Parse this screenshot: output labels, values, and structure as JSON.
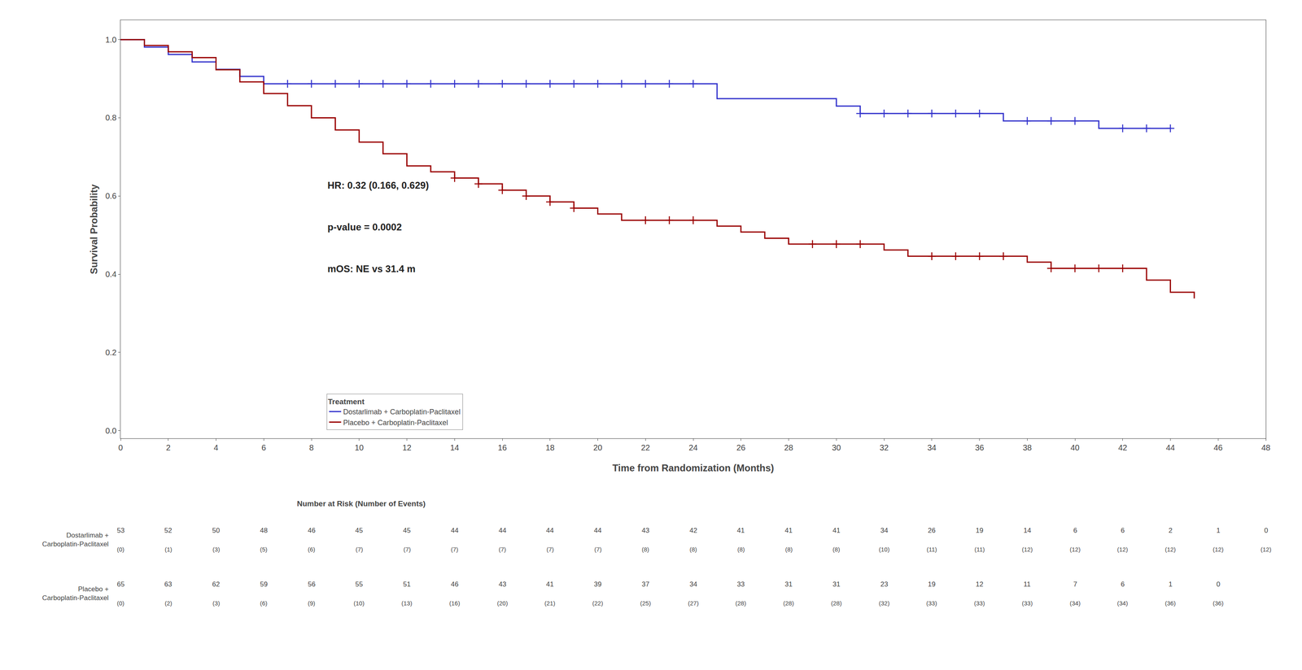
{
  "chart_data": {
    "type": "step",
    "x_label": "Time from Randomization (Months)",
    "y_label": "Survival Probability",
    "xlim": [
      0,
      48
    ],
    "xticks": [
      0,
      2,
      4,
      6,
      8,
      10,
      12,
      14,
      16,
      18,
      20,
      22,
      24,
      26,
      28,
      30,
      32,
      34,
      36,
      38,
      40,
      42,
      44,
      46,
      48
    ],
    "ylim": [
      -0.02,
      1.05
    ],
    "yticks": [
      {
        "value": 0,
        "label": "0.0"
      },
      0.2,
      0.4,
      0.6,
      0.8,
      {
        "value": 1,
        "label": "1.0"
      }
    ],
    "grid": false,
    "legend": "lower left",
    "legend_title": "Treatment",
    "annotations": [
      "HR: 0.32 (0.166, 0.629)",
      "p-value = 0.0002",
      "mOS: NE vs 31.4 m"
    ],
    "series": [
      {
        "name": "Dostarlimab + Carboplatin-Paclitaxel",
        "color": "#3333CC",
        "marker": "cross",
        "x": [
          0,
          1,
          2,
          3,
          4,
          5,
          6,
          7,
          8,
          9,
          10,
          11,
          12,
          13,
          14,
          15,
          16,
          17,
          18,
          19,
          20,
          21,
          22,
          23,
          24,
          25,
          26,
          27,
          28,
          29,
          30,
          31,
          32,
          33,
          34,
          35,
          36,
          37,
          38,
          39,
          40,
          41,
          42,
          43,
          44
        ],
        "values": [
          1.0,
          0.981,
          0.962,
          0.943,
          0.924,
          0.906,
          0.887,
          0.887,
          0.887,
          0.887,
          0.887,
          0.887,
          0.887,
          0.887,
          0.887,
          0.887,
          0.887,
          0.887,
          0.887,
          0.887,
          0.887,
          0.887,
          0.887,
          0.887,
          0.887,
          0.849,
          0.849,
          0.849,
          0.849,
          0.849,
          0.83,
          0.811,
          0.811,
          0.811,
          0.811,
          0.811,
          0.811,
          0.792,
          0.792,
          0.792,
          0.792,
          0.773,
          0.773,
          0.773,
          0.773
        ],
        "censored": {
          "x": [
            7,
            8,
            9,
            10,
            11,
            12,
            13,
            14,
            15,
            16,
            17,
            18,
            19,
            20,
            21,
            22,
            23,
            24,
            31,
            32,
            33,
            34,
            35,
            36,
            38,
            39,
            40,
            42,
            43,
            44
          ],
          "values": [
            0.887,
            0.887,
            0.887,
            0.887,
            0.887,
            0.887,
            0.887,
            0.887,
            0.887,
            0.887,
            0.887,
            0.887,
            0.887,
            0.887,
            0.887,
            0.887,
            0.887,
            0.887,
            0.811,
            0.811,
            0.811,
            0.811,
            0.811,
            0.811,
            0.792,
            0.792,
            0.792,
            0.773,
            0.773,
            0.773
          ]
        }
      },
      {
        "name": "Placebo + Carboplatin-Paclitaxel",
        "color": "#990000",
        "marker": "cross",
        "x": [
          0,
          1,
          2,
          3,
          4,
          5,
          6,
          7,
          8,
          9,
          10,
          11,
          12,
          13,
          14,
          15,
          16,
          17,
          18,
          19,
          20,
          21,
          22,
          23,
          24,
          25,
          26,
          27,
          28,
          29,
          30,
          31,
          32,
          33,
          34,
          35,
          36,
          37,
          38,
          39,
          40,
          41,
          42,
          43,
          44,
          45
        ],
        "values": [
          1.0,
          0.985,
          0.969,
          0.954,
          0.923,
          0.892,
          0.862,
          0.831,
          0.8,
          0.769,
          0.738,
          0.708,
          0.677,
          0.662,
          0.646,
          0.631,
          0.615,
          0.6,
          0.585,
          0.569,
          0.554,
          0.538,
          0.538,
          0.538,
          0.538,
          0.523,
          0.508,
          0.492,
          0.477,
          0.477,
          0.477,
          0.477,
          0.462,
          0.446,
          0.446,
          0.446,
          0.446,
          0.446,
          0.431,
          0.415,
          0.415,
          0.415,
          0.415,
          0.385,
          0.354,
          0.338
        ],
        "censored": {
          "x": [
            14,
            15,
            16,
            17,
            18,
            19,
            22,
            23,
            24,
            29,
            30,
            31,
            34,
            35,
            36,
            37,
            39,
            40,
            41,
            42
          ],
          "values": [
            0.646,
            0.631,
            0.615,
            0.6,
            0.585,
            0.569,
            0.538,
            0.538,
            0.538,
            0.477,
            0.477,
            0.477,
            0.446,
            0.446,
            0.446,
            0.446,
            0.415,
            0.415,
            0.415,
            0.415
          ]
        }
      }
    ],
    "risk_table": {
      "title": "Number at Risk (Number of Events)",
      "times": [
        0,
        2,
        4,
        6,
        8,
        10,
        12,
        14,
        16,
        18,
        20,
        22,
        24,
        26,
        28,
        30,
        32,
        34,
        36,
        38,
        40,
        42,
        44,
        46,
        48
      ],
      "rows": [
        {
          "label": [
            "Dostarlimab +",
            "Carboplatin-Paclitaxel"
          ],
          "at_risk": [
            53,
            52,
            50,
            48,
            46,
            45,
            45,
            44,
            44,
            44,
            44,
            43,
            42,
            41,
            41,
            41,
            34,
            26,
            19,
            14,
            6,
            6,
            2,
            1,
            0
          ],
          "events": [
            0,
            1,
            3,
            5,
            6,
            7,
            7,
            7,
            7,
            7,
            7,
            8,
            8,
            8,
            8,
            8,
            10,
            11,
            11,
            12,
            12,
            12,
            12,
            12,
            12
          ],
          "events_labels": [
            "(0)",
            "(1)",
            "(3)",
            "(5)",
            "(6)",
            "(7)",
            "(7)",
            "(7)",
            "(7)",
            "(7)",
            "(7)",
            "(8)",
            "(8)",
            "(8)",
            "(8)",
            "(8)",
            "(10)",
            "(11)",
            "(11)",
            "(12)",
            "(12)",
            "(12)",
            "(12)",
            "(12)",
            "(12)"
          ]
        },
        {
          "label": [
            "Placebo +",
            "Carboplatin-Paclitaxel"
          ],
          "at_risk": [
            65,
            63,
            62,
            59,
            56,
            55,
            51,
            46,
            43,
            41,
            39,
            37,
            34,
            33,
            31,
            31,
            23,
            19,
            12,
            11,
            7,
            6,
            1,
            0,
            null
          ],
          "events": [
            0,
            2,
            3,
            6,
            9,
            10,
            13,
            16,
            20,
            21,
            22,
            25,
            27,
            28,
            28,
            28,
            32,
            33,
            33,
            33,
            34,
            34,
            36,
            36,
            null
          ],
          "events_labels": [
            "(0)",
            "(2)",
            "(3)",
            "(6)",
            "(9)",
            "(10)",
            "(13)",
            "(16)",
            "(20)",
            "(21)",
            "(22)",
            "(25)",
            "(27)",
            "(28)",
            "(28)",
            "(28)",
            "(32)",
            "(33)",
            "(33)",
            "(33)",
            "(34)",
            "(34)",
            "(36)",
            "(36)",
            null
          ]
        }
      ]
    }
  }
}
